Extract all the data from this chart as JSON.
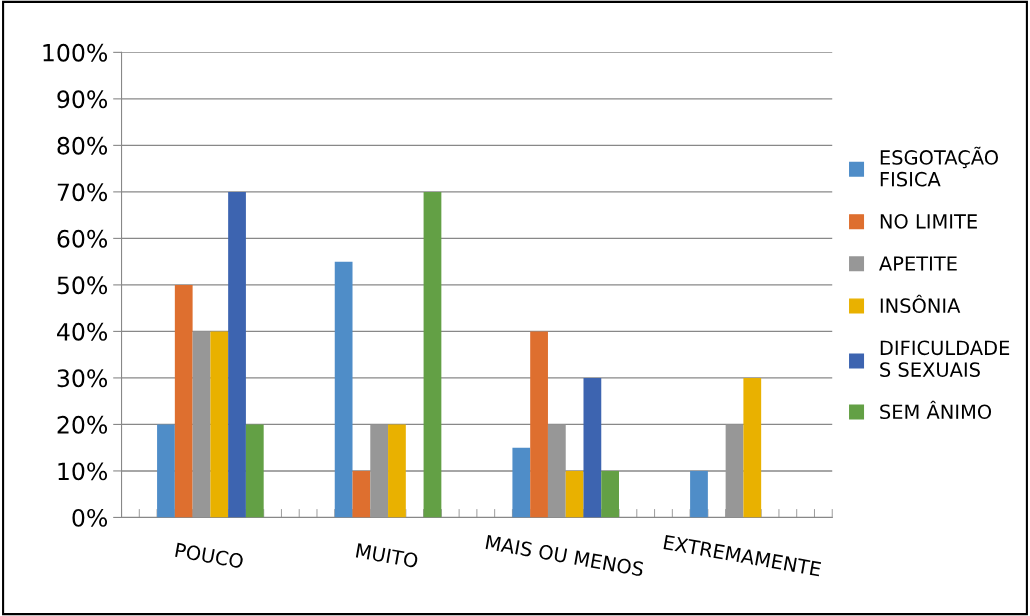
{
  "chart_data": {
    "type": "bar",
    "categories": [
      "POUCO",
      "MUITO",
      "MAIS OU MENOS",
      "EXTREMAMENTE"
    ],
    "series": [
      {
        "name": "ESGOTAÇÃO FISICA",
        "color": "#4f8dc8",
        "values": [
          20,
          55,
          15,
          10
        ]
      },
      {
        "name": "NO LIMITE",
        "color": "#de6f2f",
        "values": [
          50,
          10,
          40,
          null
        ]
      },
      {
        "name": "APETITE",
        "color": "#979797",
        "values": [
          40,
          20,
          20,
          20
        ]
      },
      {
        "name": "INSÔNIA",
        "color": "#e9b100",
        "values": [
          40,
          20,
          10,
          30
        ]
      },
      {
        "name": "DIFICULDADES SEXUAIS",
        "color": "#3d64b0",
        "values": [
          70,
          null,
          30,
          null
        ]
      },
      {
        "name": "SEM ÂNIMO",
        "color": "#63a045",
        "values": [
          20,
          70,
          10,
          null
        ]
      }
    ],
    "ylim": [
      0,
      100
    ],
    "yticks": [
      {
        "value": 0,
        "label": "0%"
      },
      {
        "value": 10,
        "label": "10%"
      },
      {
        "value": 20,
        "label": "20%"
      },
      {
        "value": 30,
        "label": "30%"
      },
      {
        "value": 40,
        "label": "40%"
      },
      {
        "value": 50,
        "label": "50%"
      },
      {
        "value": 60,
        "label": "60%"
      },
      {
        "value": 70,
        "label": "70%"
      },
      {
        "value": 80,
        "label": "80%"
      },
      {
        "value": 90,
        "label": "90%"
      },
      {
        "value": 100,
        "label": "100%"
      }
    ],
    "grid": "y",
    "legend": "right"
  }
}
